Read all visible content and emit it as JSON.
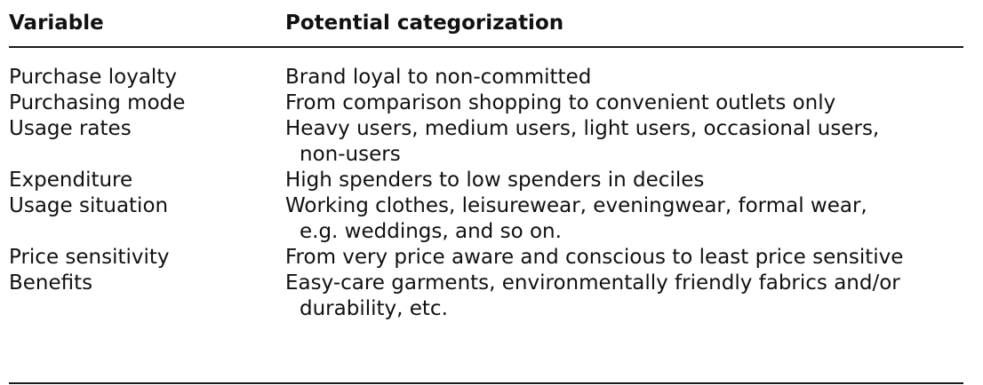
{
  "table": {
    "headers": {
      "variable": "Variable",
      "categorization": "Potential categorization"
    },
    "rows": [
      {
        "variable": "Purchase loyalty",
        "lines": [
          "Brand loyal to non-committed"
        ]
      },
      {
        "variable": "Purchasing mode",
        "lines": [
          "From comparison shopping to convenient outlets only"
        ]
      },
      {
        "variable": "Usage rates",
        "lines": [
          "Heavy users, medium users, light users, occasional users,",
          "non-users"
        ]
      },
      {
        "variable": "Expenditure",
        "lines": [
          "High spenders to low spenders in deciles"
        ]
      },
      {
        "variable": "Usage situation",
        "lines": [
          "Working clothes, leisurewear, eveningwear, formal wear,",
          "e.g. weddings, and so on."
        ]
      },
      {
        "variable": "Price sensitivity",
        "lines": [
          "From very price aware and conscious to least price sensitive"
        ]
      },
      {
        "variable": "Benefits",
        "lines": [
          "Easy-care garments, environmentally friendly fabrics and/or",
          "durability, etc."
        ]
      }
    ]
  }
}
